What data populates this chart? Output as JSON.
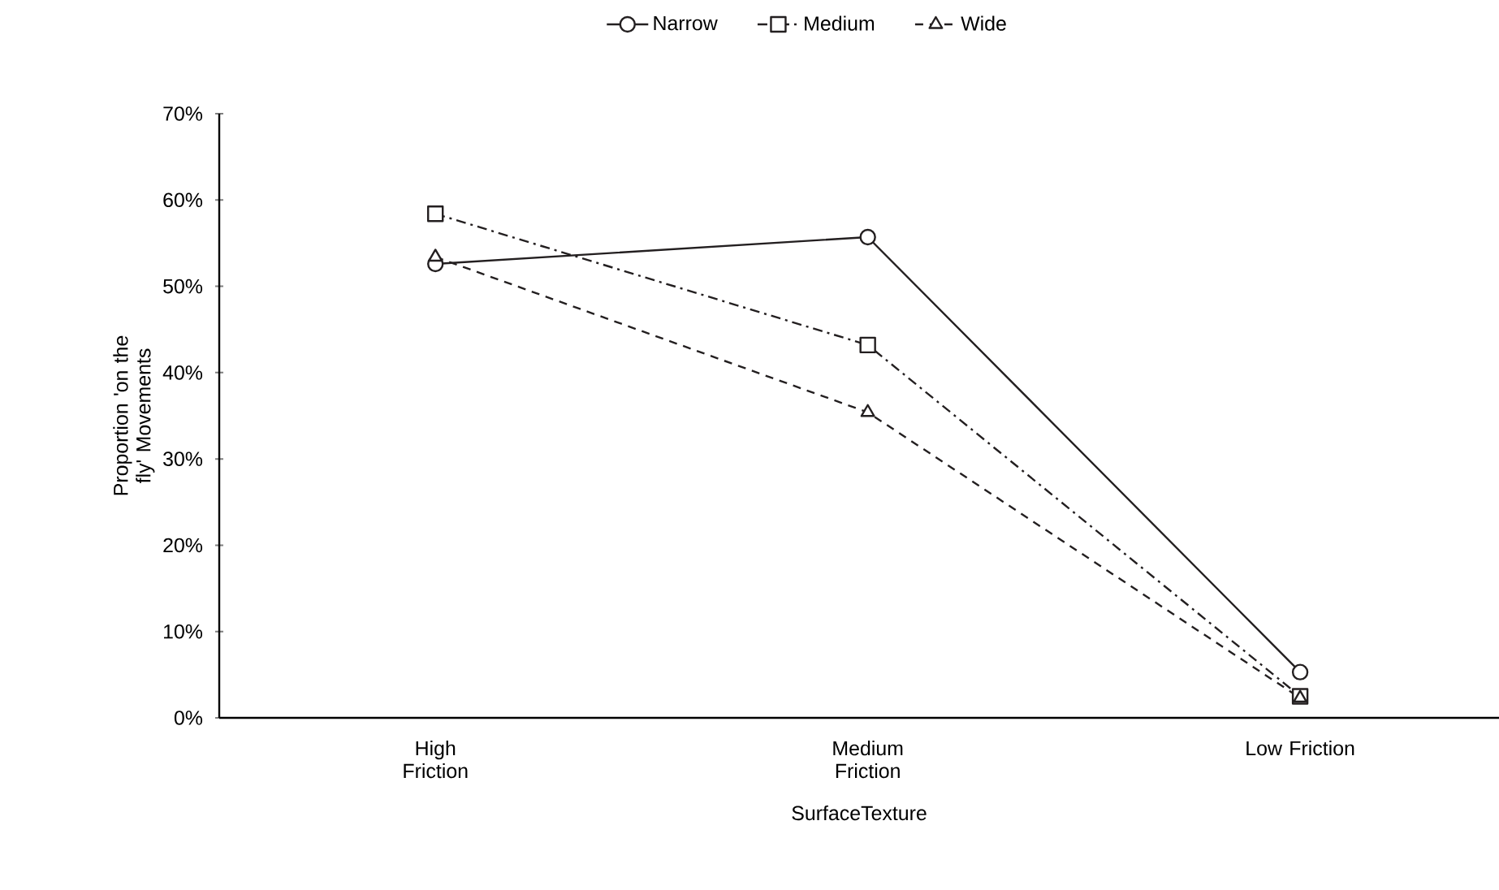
{
  "chart_data": {
    "type": "line",
    "xlabel": "SurfaceTexture",
    "ylabel": "Proportion 'on the fly' Movements",
    "categories": [
      "High Friction",
      "Medium Friction",
      "Low Friction"
    ],
    "series": [
      {
        "name": "Narrow",
        "color": "#231f20",
        "values": [
          52.6,
          55.7,
          5.3
        ],
        "marker": "circle",
        "line_style": "solid"
      },
      {
        "name": "Medium",
        "color": "#231f20",
        "values": [
          58.4,
          43.2,
          2.5
        ],
        "marker": "square",
        "line_style": "dashdot"
      },
      {
        "name": "Wide",
        "color": "#231f20",
        "values": [
          53.4,
          35.4,
          2.3
        ],
        "marker": "triangle",
        "line_style": "dashed"
      }
    ],
    "ylim": [
      0,
      70
    ],
    "yticks": [
      {
        "value": 0,
        "label": "0%"
      },
      {
        "value": 10,
        "label": "10%"
      },
      {
        "value": 20,
        "label": "20%"
      },
      {
        "value": 30,
        "label": "30%"
      },
      {
        "value": 40,
        "label": "40%"
      },
      {
        "value": 50,
        "label": "50%"
      },
      {
        "value": 60,
        "label": "60%"
      },
      {
        "value": 70,
        "label": "70%"
      }
    ],
    "grid": false,
    "legend": "top"
  }
}
